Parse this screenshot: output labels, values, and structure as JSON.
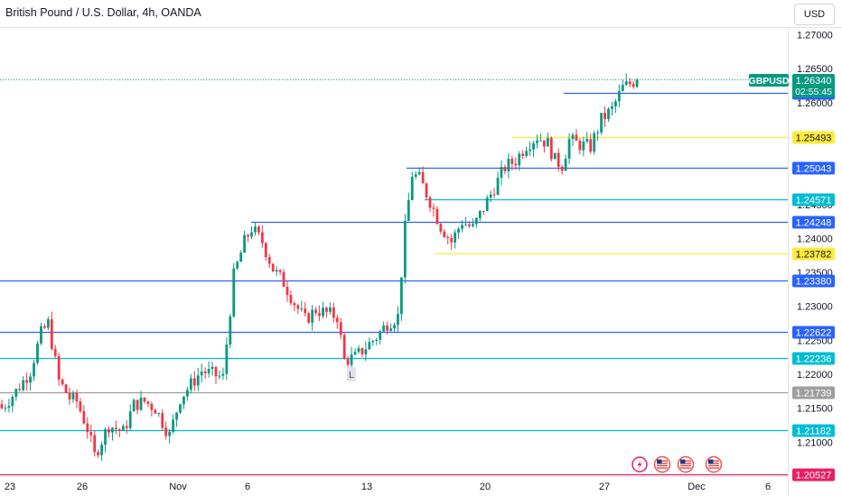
{
  "header": {
    "title": "British Pound / U.S. Dollar, 4h, OANDA",
    "currency_button": "USD"
  },
  "symbol_badge": {
    "symbol": "GBPUSD",
    "price": "1.26340",
    "countdown": "02:55:45",
    "color": "#089981"
  },
  "chart_data": {
    "type": "candlestick",
    "title": "British Pound / U.S. Dollar, 4h, OANDA",
    "y_axis": {
      "range": [
        1.2036,
        1.2742
      ],
      "ticks": [
        "1.27000",
        "1.26500",
        "1.26000",
        "1.25500",
        "1.25000",
        "1.24500",
        "1.24000",
        "1.23500",
        "1.23000",
        "1.22500",
        "1.22000",
        "1.21500",
        "1.21000"
      ]
    },
    "x_axis": {
      "labels": [
        "23",
        "26",
        "Nov",
        "6",
        "13",
        "20",
        "27",
        "Dec",
        "6"
      ]
    },
    "grid": false,
    "colors": {
      "up": "#089981",
      "down": "#f23645"
    },
    "horizontal_levels": [
      {
        "price": 1.26148,
        "label": "1.26148",
        "color": "#2962ff",
        "line": "segment"
      },
      {
        "price": 1.25493,
        "label": "1.25493",
        "color": "#ffeb3b",
        "line": "segment"
      },
      {
        "price": 1.25043,
        "label": "1.25043",
        "color": "#2962ff",
        "line": "segment"
      },
      {
        "price": 1.24571,
        "label": "1.24571",
        "color": "#00bcd4",
        "line": "segment"
      },
      {
        "price": 1.24248,
        "label": "1.24248",
        "color": "#2962ff",
        "line": "segment"
      },
      {
        "price": 1.23782,
        "label": "1.23782",
        "color": "#ffeb3b",
        "line": "segment"
      },
      {
        "price": 1.2338,
        "label": "1.23380",
        "color": "#2962ff",
        "line": "full"
      },
      {
        "price": 1.22622,
        "label": "1.22622",
        "color": "#2962ff",
        "line": "full"
      },
      {
        "price": 1.22236,
        "label": "1.22236",
        "color": "#00bcd4",
        "line": "full"
      },
      {
        "price": 1.21739,
        "label": "1.21739",
        "color": "#9e9e9e",
        "line": "full"
      },
      {
        "price": 1.21182,
        "label": "1.21182",
        "color": "#00bcd4",
        "line": "full"
      },
      {
        "price": 1.20527,
        "label": "1.20527",
        "color": "#e91e63",
        "line": "full"
      }
    ],
    "last_price": 1.2634,
    "chart_marker": "L",
    "event_icons": [
      "lightning-icon",
      "us-flag-icon",
      "us-flag-icon",
      "us-flag-icon"
    ],
    "anchors": [
      [
        0,
        1.215
      ],
      [
        4,
        1.2175
      ],
      [
        8,
        1.2205
      ],
      [
        11,
        1.226
      ],
      [
        13,
        1.2275
      ],
      [
        16,
        1.219
      ],
      [
        19,
        1.2165
      ],
      [
        21,
        1.216
      ],
      [
        24,
        1.212
      ],
      [
        26,
        1.208
      ],
      [
        30,
        1.2125
      ],
      [
        34,
        1.2115
      ],
      [
        37,
        1.2155
      ],
      [
        40,
        1.216
      ],
      [
        43,
        1.215
      ],
      [
        47,
        1.211
      ],
      [
        50,
        1.2165
      ],
      [
        53,
        1.2185
      ],
      [
        56,
        1.2205
      ],
      [
        59,
        1.22
      ],
      [
        62,
        1.2195
      ],
      [
        65,
        1.2345
      ],
      [
        68,
        1.2395
      ],
      [
        70,
        1.2415
      ],
      [
        73,
        1.2395
      ],
      [
        76,
        1.2355
      ],
      [
        79,
        1.2335
      ],
      [
        82,
        1.2305
      ],
      [
        85,
        1.228
      ],
      [
        88,
        1.2295
      ],
      [
        91,
        1.229
      ],
      [
        94,
        1.2285
      ],
      [
        96,
        1.222
      ],
      [
        99,
        1.2225
      ],
      [
        102,
        1.224
      ],
      [
        105,
        1.2255
      ],
      [
        108,
        1.2275
      ],
      [
        111,
        1.2285
      ],
      [
        113,
        1.2415
      ],
      [
        115,
        1.2495
      ],
      [
        117,
        1.2488
      ],
      [
        120,
        1.2455
      ],
      [
        123,
        1.2418
      ],
      [
        126,
        1.2395
      ],
      [
        129,
        1.2425
      ],
      [
        132,
        1.2415
      ],
      [
        135,
        1.2445
      ],
      [
        138,
        1.2475
      ],
      [
        141,
        1.2505
      ],
      [
        144,
        1.2515
      ],
      [
        147,
        1.2538
      ],
      [
        150,
        1.255
      ],
      [
        153,
        1.254
      ],
      [
        155,
        1.2515
      ],
      [
        157,
        1.2508
      ],
      [
        159,
        1.2545
      ],
      [
        162,
        1.2538
      ],
      [
        165,
        1.2535
      ],
      [
        168,
        1.2575
      ],
      [
        171,
        1.259
      ],
      [
        174,
        1.2622
      ],
      [
        176,
        1.2628
      ],
      [
        178,
        1.2634
      ]
    ],
    "candle_count": 179
  }
}
